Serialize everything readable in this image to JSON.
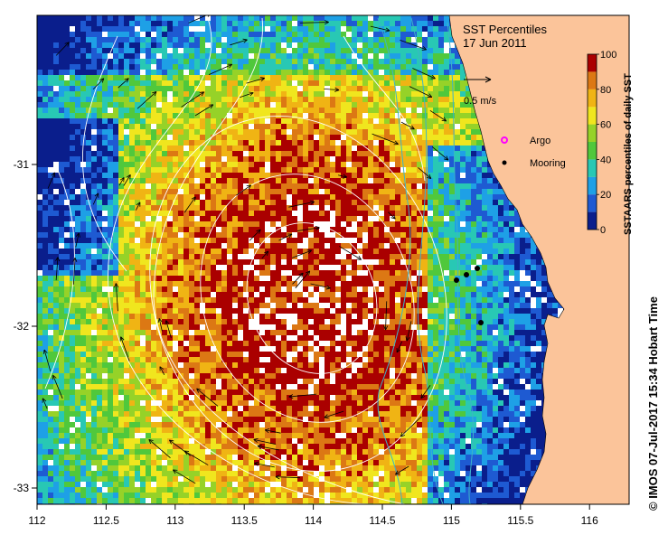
{
  "map": {
    "title": "SST Percentiles",
    "date": "17 Jun 2011",
    "velocity_scale_label": "0.5 m/s",
    "legend": [
      {
        "label": "Argo",
        "marker_color": "#ff00ff"
      },
      {
        "label": "Mooring",
        "marker_color": "#000000"
      }
    ],
    "colorbar": {
      "label": "SSTAARS percentiles of daily SST",
      "ticks": [
        "0",
        "20",
        "40",
        "60",
        "80",
        "100"
      ]
    },
    "x_ticks": [
      "112",
      "112.5",
      "113",
      "113.5",
      "114",
      "114.5",
      "115",
      "115.5",
      "116"
    ],
    "y_ticks": [
      "-31",
      "-32",
      "-33"
    ],
    "credit": "© IMOS 07-Jul-2017 15:34 Hobart Time",
    "colors": {
      "land": "#fbc49a",
      "c0": "#0a1e8c",
      "c10": "#1e5ad2",
      "c20": "#1ea0e6",
      "c30": "#28c8b4",
      "c40": "#50c83c",
      "c50": "#96d228",
      "c60": "#f0e61e",
      "c70": "#f0b414",
      "c80": "#dc7814",
      "c90": "#aa0000"
    }
  }
}
